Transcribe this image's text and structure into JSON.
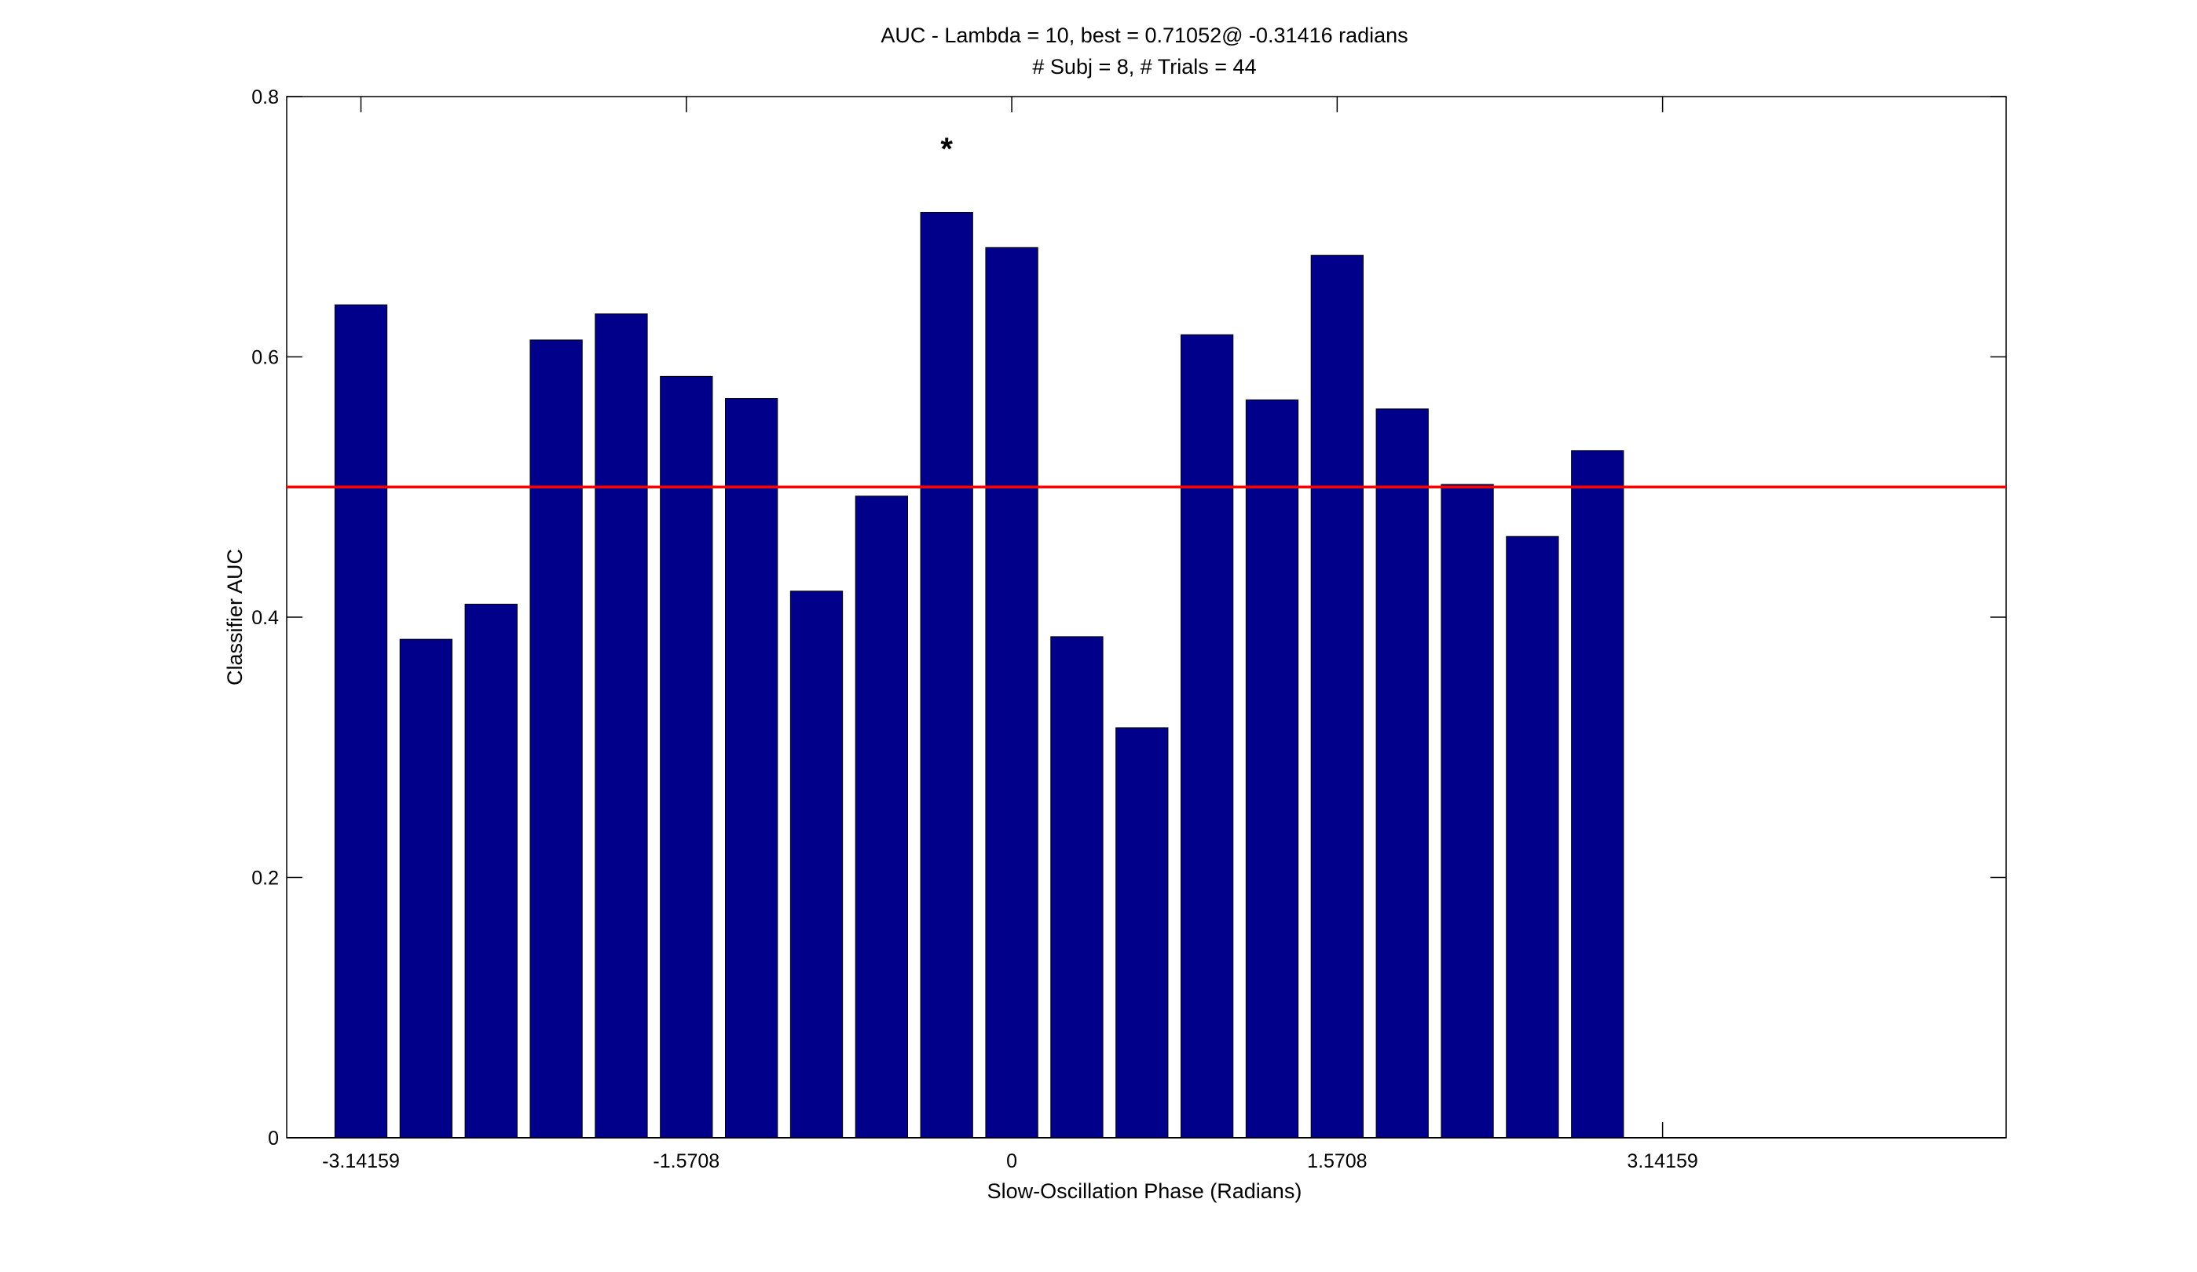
{
  "chart_data": {
    "type": "bar",
    "title": "AUC - Lambda = 10, best = 0.71052@ -0.31416 radians",
    "subtitle": "# Subj = 8, # Trials = 44",
    "xlabel": "Slow-Oscillation Phase (Radians)",
    "ylabel": "Classifier AUC",
    "xlim": [
      -3.5,
      4.8
    ],
    "ylim": [
      0,
      0.8
    ],
    "x": [
      -3.14159,
      -2.82743,
      -2.51327,
      -2.19911,
      -1.88496,
      -1.5708,
      -1.25664,
      -0.94248,
      -0.62832,
      -0.31416,
      0,
      0.31416,
      0.62832,
      0.94248,
      1.25664,
      1.5708,
      1.88496,
      2.19911,
      2.51327,
      2.82743
    ],
    "values": [
      0.64,
      0.383,
      0.41,
      0.613,
      0.633,
      0.585,
      0.568,
      0.42,
      0.493,
      0.711,
      0.684,
      0.385,
      0.315,
      0.617,
      0.567,
      0.678,
      0.56,
      0.502,
      0.462,
      0.528
    ],
    "bar_color": "#00008B",
    "x_ticks": [
      {
        "value": -3.14159,
        "label": "-3.14159"
      },
      {
        "value": -1.5708,
        "label": "-1.5708"
      },
      {
        "value": 0,
        "label": "0"
      },
      {
        "value": 1.5708,
        "label": "1.5708"
      },
      {
        "value": 3.14159,
        "label": "3.14159"
      }
    ],
    "y_ticks": [
      {
        "value": 0,
        "label": "0"
      },
      {
        "value": 0.2,
        "label": "0.2"
      },
      {
        "value": 0.4,
        "label": "0.4"
      },
      {
        "value": 0.6,
        "label": "0.6"
      },
      {
        "value": 0.8,
        "label": "0.8"
      }
    ],
    "reference_line": {
      "y": 0.5,
      "color": "#FF0000"
    },
    "annotations": [
      {
        "text": "*",
        "x": -0.31416,
        "y": 0.765
      }
    ],
    "grid": false,
    "legend": "none"
  }
}
